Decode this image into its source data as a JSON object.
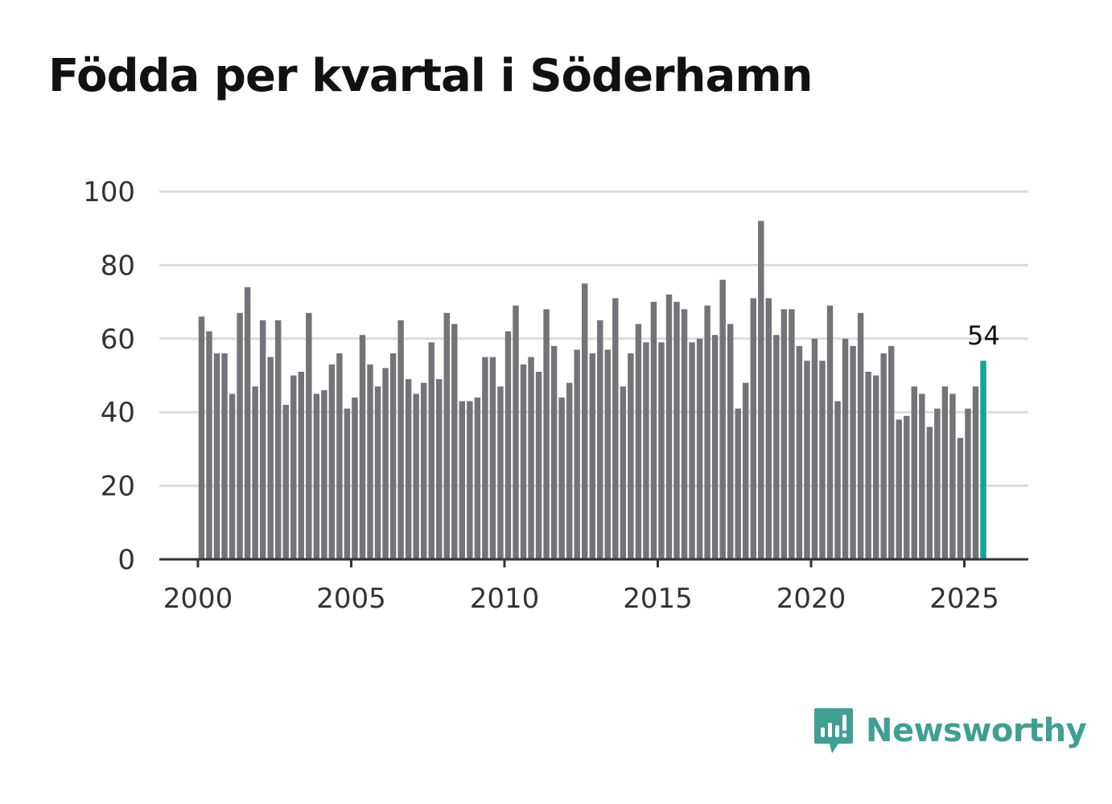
{
  "colors": {
    "bar": "#747378",
    "highlight": "#16a397",
    "grid": "#dddddd",
    "axis": "#333333",
    "brand": "#3f9f93"
  },
  "brand": {
    "name": "Newsworthy",
    "icon": "newsworthy-chart-bubble-icon"
  },
  "chart_data": {
    "type": "bar",
    "title": "Födda per kvartal i Söderhamn",
    "xlabel": "",
    "ylabel": "",
    "ylim": [
      0,
      100
    ],
    "y_ticks": [
      "0",
      "20",
      "40",
      "60",
      "80",
      "100"
    ],
    "x_ticks": [
      "2000",
      "2005",
      "2010",
      "2015",
      "2020",
      "2025"
    ],
    "x_tick_values": [
      2000,
      2005,
      2010,
      2015,
      2020,
      2025
    ],
    "x_start": 2000,
    "periods_per_year": 4,
    "grid": true,
    "highlight_last": true,
    "last_label": "54",
    "series": [
      {
        "name": "Födda",
        "values": [
          66,
          62,
          56,
          56,
          45,
          67,
          74,
          47,
          65,
          55,
          65,
          42,
          50,
          51,
          67,
          45,
          46,
          53,
          56,
          41,
          44,
          61,
          53,
          47,
          52,
          56,
          65,
          49,
          45,
          48,
          59,
          49,
          67,
          64,
          43,
          43,
          44,
          55,
          55,
          47,
          62,
          69,
          53,
          55,
          51,
          68,
          58,
          44,
          48,
          57,
          75,
          56,
          65,
          57,
          71,
          47,
          56,
          64,
          59,
          70,
          59,
          72,
          70,
          68,
          59,
          60,
          69,
          61,
          76,
          64,
          41,
          48,
          71,
          92,
          71,
          61,
          68,
          68,
          58,
          54,
          60,
          54,
          69,
          43,
          60,
          58,
          67,
          51,
          50,
          56,
          58,
          38,
          39,
          47,
          45,
          36,
          41,
          47,
          45,
          33,
          41,
          47,
          54
        ]
      }
    ]
  }
}
